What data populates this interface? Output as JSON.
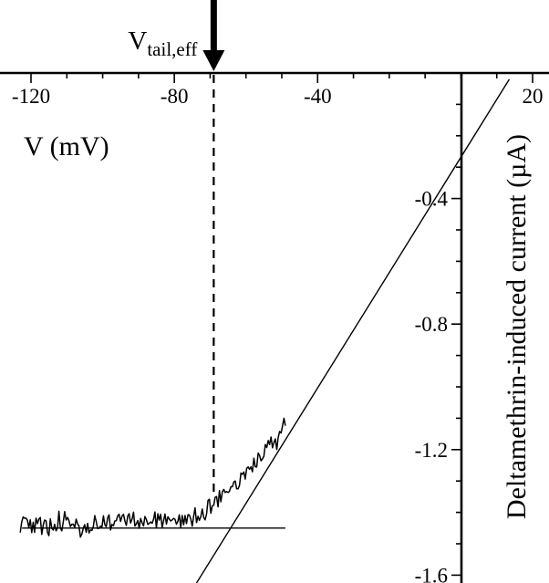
{
  "figure": {
    "background": "#ffffff",
    "ink": "#000000"
  },
  "chart_data": {
    "type": "line",
    "title": "",
    "xlabel": "V (mV)",
    "ylabel": "Deltamethrin-induced current (µA)",
    "xlim": [
      -120,
      20
    ],
    "ylim": [
      -1.6,
      0
    ],
    "x_axis_position": "top",
    "y_axis_position": "right",
    "grid": false,
    "legend": "none",
    "x_ticks": {
      "major": [
        -120,
        -80,
        -40,
        20
      ],
      "labels": [
        "-120",
        "-80",
        "-40",
        "20"
      ],
      "minor_step": 10
    },
    "y_ticks": {
      "major": [
        -0.4,
        -0.8,
        -1.2,
        -1.6
      ],
      "labels": [
        "-0.4",
        "-0.8",
        "-1.2",
        "-1.6"
      ],
      "minor_step": 0.1
    },
    "series": [
      {
        "name": "deltamethrin-induced-current-trace",
        "kind": "noisy_trace",
        "anchors": [
          [
            -123,
            -1.44
          ],
          [
            -115,
            -1.45
          ],
          [
            -110,
            -1.445
          ],
          [
            -105,
            -1.45
          ],
          [
            -100,
            -1.44
          ],
          [
            -95,
            -1.44
          ],
          [
            -90,
            -1.435
          ],
          [
            -85,
            -1.43
          ],
          [
            -80,
            -1.425
          ],
          [
            -76,
            -1.41
          ],
          [
            -72,
            -1.39
          ],
          [
            -68,
            -1.36
          ],
          [
            -64,
            -1.32
          ],
          [
            -60,
            -1.27
          ],
          [
            -56,
            -1.21
          ],
          [
            -52,
            -1.14
          ],
          [
            -49,
            -1.1
          ]
        ],
        "noise": {
          "amp": 0.028,
          "spike_prob": 0.07,
          "spike_gain": 2.2,
          "step_mV": 0.4,
          "seed": 20
        }
      },
      {
        "name": "baseline-fit",
        "kind": "line_segment",
        "points": [
          [
            -122.5,
            -1.45
          ],
          [
            -49,
            -1.45
          ]
        ]
      },
      {
        "name": "linear-fit",
        "kind": "line_segment",
        "points": [
          [
            -73.8,
            -1.625
          ],
          [
            13.5,
            -0.02
          ]
        ]
      }
    ],
    "annotations": {
      "vtail": {
        "label_main": "V",
        "label_sub": "tail,eff",
        "voltage_mV": -69,
        "dashed_line": {
          "x": -69,
          "i_from": 0,
          "i_to": -1.35
        },
        "arrow": "down-arrow"
      }
    }
  }
}
